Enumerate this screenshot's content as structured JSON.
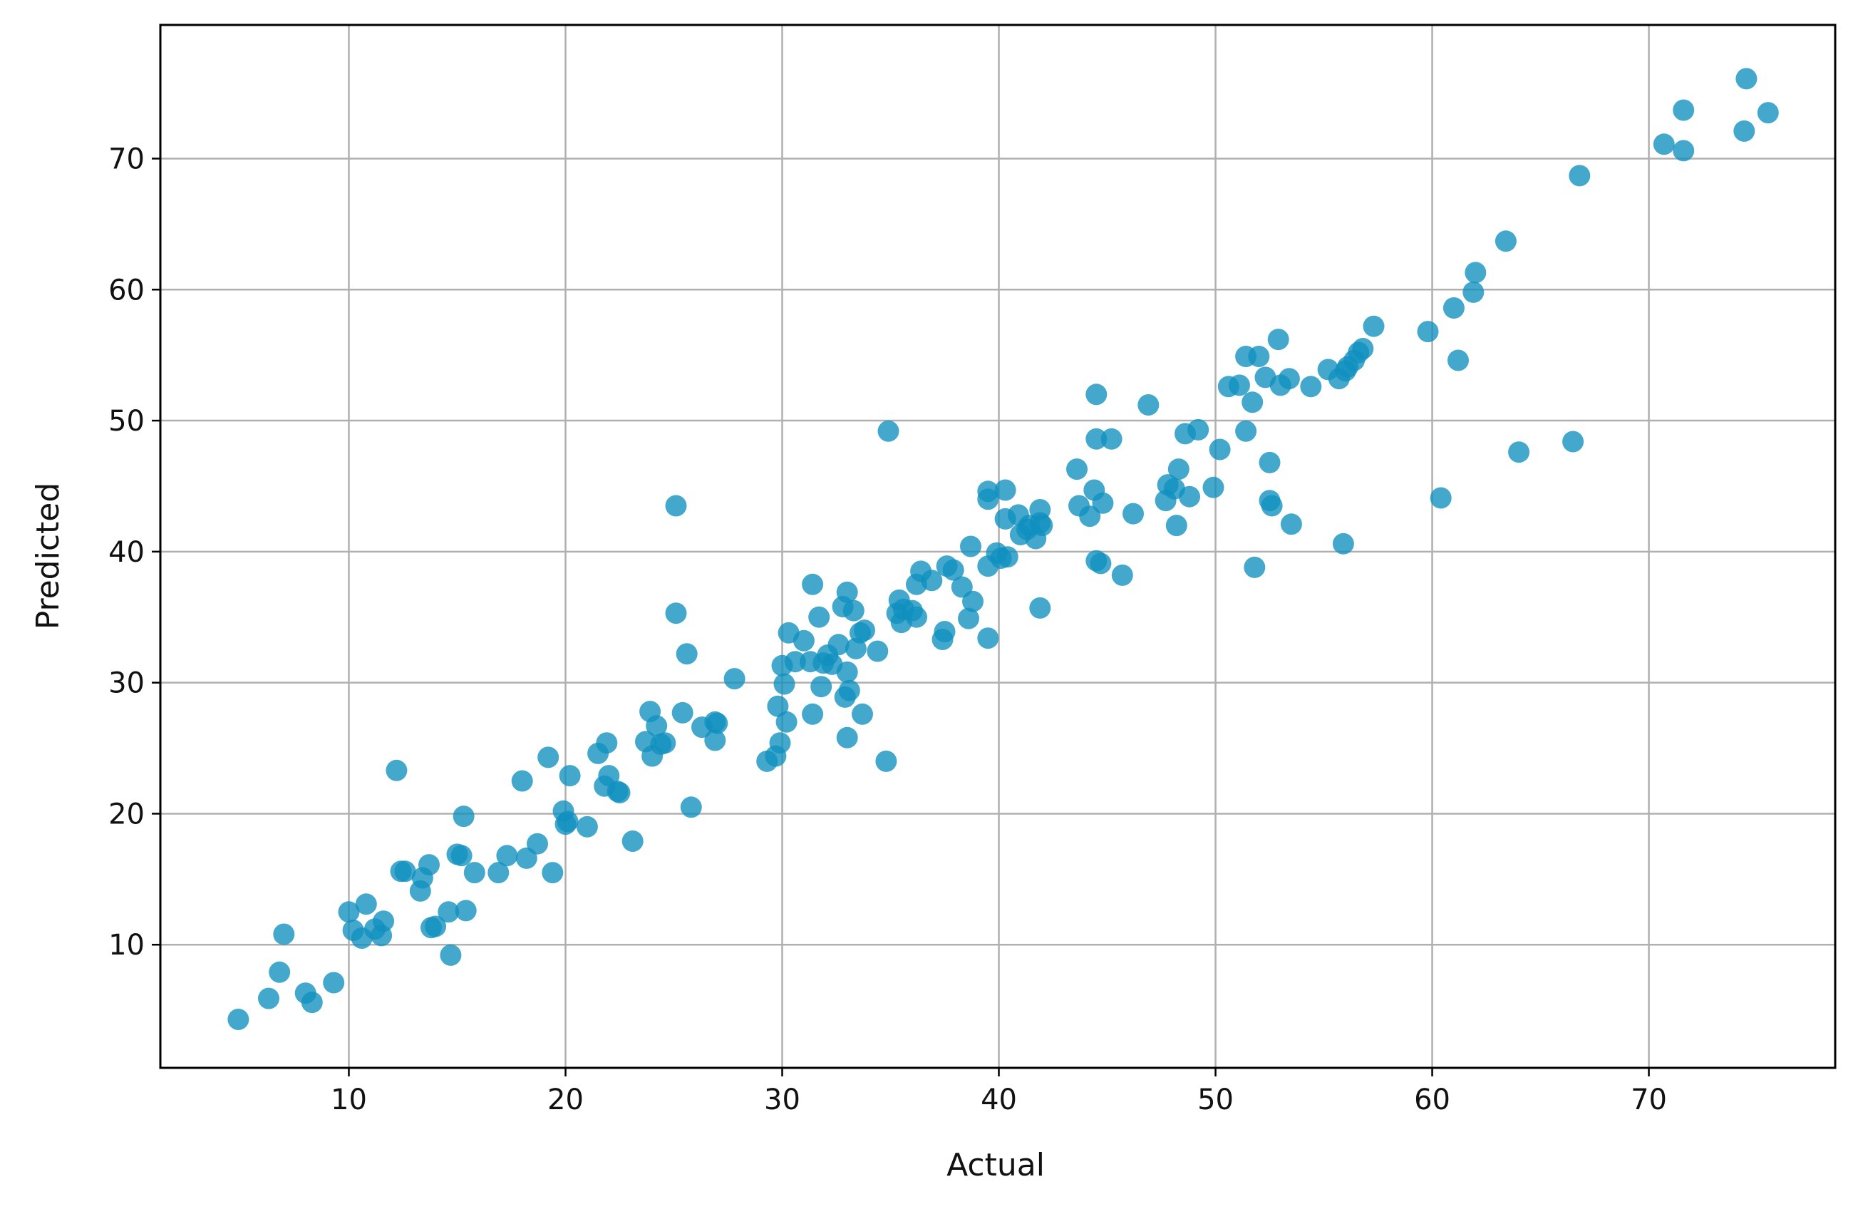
{
  "chart_data": {
    "type": "scatter",
    "xlabel": "Actual",
    "ylabel": "Predicted",
    "xlim": [
      1.3,
      78.6
    ],
    "ylim": [
      0.6,
      80.2
    ],
    "x_ticks": [
      10,
      20,
      30,
      40,
      50,
      60,
      70
    ],
    "y_ticks": [
      10,
      20,
      30,
      40,
      50,
      60,
      70
    ],
    "grid": true,
    "marker_color": "#0f8fbf",
    "marker_opacity": 0.78,
    "points": [
      [
        4.9,
        4.3
      ],
      [
        6.3,
        5.9
      ],
      [
        6.8,
        7.9
      ],
      [
        7.0,
        10.8
      ],
      [
        8.0,
        6.3
      ],
      [
        8.3,
        5.6
      ],
      [
        9.3,
        7.1
      ],
      [
        10.0,
        12.5
      ],
      [
        10.2,
        11.1
      ],
      [
        10.6,
        10.5
      ],
      [
        10.8,
        13.1
      ],
      [
        11.2,
        11.2
      ],
      [
        11.5,
        10.7
      ],
      [
        11.6,
        11.8
      ],
      [
        12.2,
        23.3
      ],
      [
        12.4,
        15.6
      ],
      [
        12.6,
        15.6
      ],
      [
        13.3,
        14.1
      ],
      [
        13.4,
        15.1
      ],
      [
        13.7,
        16.1
      ],
      [
        13.8,
        11.3
      ],
      [
        14.0,
        11.4
      ],
      [
        14.7,
        9.2
      ],
      [
        14.6,
        12.5
      ],
      [
        15.0,
        16.9
      ],
      [
        15.2,
        16.8
      ],
      [
        15.4,
        12.6
      ],
      [
        15.3,
        19.8
      ],
      [
        15.8,
        15.5
      ],
      [
        16.9,
        15.5
      ],
      [
        17.3,
        16.8
      ],
      [
        18.0,
        22.5
      ],
      [
        18.2,
        16.6
      ],
      [
        18.7,
        17.7
      ],
      [
        19.2,
        24.3
      ],
      [
        19.4,
        15.5
      ],
      [
        19.9,
        20.2
      ],
      [
        20.1,
        19.4
      ],
      [
        20.0,
        19.2
      ],
      [
        20.2,
        22.9
      ],
      [
        21.0,
        19.0
      ],
      [
        21.5,
        24.6
      ],
      [
        21.8,
        22.1
      ],
      [
        21.9,
        25.4
      ],
      [
        22.0,
        22.9
      ],
      [
        22.4,
        21.7
      ],
      [
        22.5,
        21.6
      ],
      [
        23.1,
        17.9
      ],
      [
        23.7,
        25.5
      ],
      [
        23.9,
        27.8
      ],
      [
        24.0,
        24.4
      ],
      [
        24.2,
        26.7
      ],
      [
        24.4,
        25.3
      ],
      [
        24.6,
        25.4
      ],
      [
        25.1,
        43.5
      ],
      [
        25.1,
        35.3
      ],
      [
        25.4,
        27.7
      ],
      [
        25.6,
        32.2
      ],
      [
        25.8,
        20.5
      ],
      [
        26.3,
        26.6
      ],
      [
        26.9,
        27.0
      ],
      [
        26.9,
        25.6
      ],
      [
        27.0,
        26.9
      ],
      [
        27.8,
        30.3
      ],
      [
        29.3,
        24.0
      ],
      [
        29.7,
        24.4
      ],
      [
        29.8,
        28.2
      ],
      [
        29.9,
        25.4
      ],
      [
        30.0,
        31.3
      ],
      [
        30.1,
        29.9
      ],
      [
        30.2,
        27.0
      ],
      [
        30.3,
        33.8
      ],
      [
        30.6,
        31.6
      ],
      [
        31.0,
        33.2
      ],
      [
        31.3,
        31.6
      ],
      [
        31.4,
        27.6
      ],
      [
        31.4,
        37.5
      ],
      [
        31.7,
        35.0
      ],
      [
        31.8,
        29.7
      ],
      [
        31.9,
        31.5
      ],
      [
        32.1,
        32.1
      ],
      [
        32.3,
        31.4
      ],
      [
        32.6,
        32.9
      ],
      [
        32.8,
        35.8
      ],
      [
        32.9,
        28.9
      ],
      [
        33.0,
        30.8
      ],
      [
        33.0,
        25.8
      ],
      [
        33.0,
        36.9
      ],
      [
        33.1,
        29.4
      ],
      [
        33.3,
        35.5
      ],
      [
        33.4,
        32.6
      ],
      [
        33.6,
        33.8
      ],
      [
        33.7,
        27.6
      ],
      [
        33.8,
        34.0
      ],
      [
        34.4,
        32.4
      ],
      [
        34.8,
        24.0
      ],
      [
        34.9,
        49.2
      ],
      [
        35.3,
        35.3
      ],
      [
        35.4,
        36.3
      ],
      [
        35.5,
        34.6
      ],
      [
        35.6,
        35.6
      ],
      [
        36.0,
        35.5
      ],
      [
        36.2,
        35.0
      ],
      [
        36.2,
        37.5
      ],
      [
        36.4,
        38.5
      ],
      [
        36.9,
        37.8
      ],
      [
        37.4,
        33.3
      ],
      [
        37.5,
        33.9
      ],
      [
        37.6,
        38.9
      ],
      [
        37.9,
        38.6
      ],
      [
        38.3,
        37.3
      ],
      [
        38.6,
        34.9
      ],
      [
        38.7,
        40.4
      ],
      [
        38.8,
        36.2
      ],
      [
        39.5,
        44.0
      ],
      [
        39.5,
        44.6
      ],
      [
        39.5,
        33.4
      ],
      [
        39.5,
        38.9
      ],
      [
        39.9,
        39.9
      ],
      [
        40.1,
        39.5
      ],
      [
        40.3,
        42.5
      ],
      [
        40.3,
        44.7
      ],
      [
        40.4,
        39.6
      ],
      [
        40.9,
        42.8
      ],
      [
        41.0,
        41.3
      ],
      [
        41.3,
        41.7
      ],
      [
        41.4,
        42.0
      ],
      [
        41.7,
        41.0
      ],
      [
        41.9,
        43.2
      ],
      [
        41.9,
        35.7
      ],
      [
        41.9,
        42.2
      ],
      [
        42.0,
        42.0
      ],
      [
        43.6,
        46.3
      ],
      [
        43.7,
        43.5
      ],
      [
        44.2,
        42.7
      ],
      [
        44.4,
        44.7
      ],
      [
        44.5,
        52.0
      ],
      [
        44.5,
        48.6
      ],
      [
        44.5,
        39.3
      ],
      [
        44.7,
        39.1
      ],
      [
        44.8,
        43.7
      ],
      [
        45.2,
        48.6
      ],
      [
        45.7,
        38.2
      ],
      [
        46.2,
        42.9
      ],
      [
        46.9,
        51.2
      ],
      [
        47.7,
        43.9
      ],
      [
        47.8,
        45.1
      ],
      [
        48.1,
        44.8
      ],
      [
        48.2,
        42.0
      ],
      [
        48.3,
        46.3
      ],
      [
        48.6,
        49.0
      ],
      [
        48.8,
        44.2
      ],
      [
        49.2,
        49.3
      ],
      [
        49.9,
        44.9
      ],
      [
        50.2,
        47.8
      ],
      [
        50.6,
        52.6
      ],
      [
        51.1,
        52.7
      ],
      [
        51.4,
        49.2
      ],
      [
        51.4,
        54.9
      ],
      [
        51.7,
        51.4
      ],
      [
        51.8,
        38.8
      ],
      [
        52.0,
        54.9
      ],
      [
        52.3,
        53.3
      ],
      [
        52.5,
        46.8
      ],
      [
        52.5,
        43.9
      ],
      [
        52.6,
        43.5
      ],
      [
        52.9,
        56.2
      ],
      [
        53.0,
        52.7
      ],
      [
        53.4,
        53.2
      ],
      [
        53.5,
        42.1
      ],
      [
        54.4,
        52.6
      ],
      [
        55.2,
        53.9
      ],
      [
        55.7,
        53.2
      ],
      [
        55.9,
        40.6
      ],
      [
        56.0,
        53.8
      ],
      [
        56.1,
        54.1
      ],
      [
        56.4,
        54.6
      ],
      [
        56.6,
        55.2
      ],
      [
        56.8,
        55.5
      ],
      [
        57.3,
        57.2
      ],
      [
        59.8,
        56.8
      ],
      [
        60.4,
        44.1
      ],
      [
        61.0,
        58.6
      ],
      [
        61.2,
        54.6
      ],
      [
        61.9,
        59.8
      ],
      [
        62.0,
        61.3
      ],
      [
        63.4,
        63.7
      ],
      [
        64.0,
        47.6
      ],
      [
        66.5,
        48.4
      ],
      [
        66.8,
        68.7
      ],
      [
        70.7,
        71.1
      ],
      [
        71.6,
        73.7
      ],
      [
        71.6,
        70.6
      ],
      [
        74.4,
        72.1
      ],
      [
        74.5,
        76.1
      ],
      [
        75.5,
        73.5
      ]
    ]
  }
}
